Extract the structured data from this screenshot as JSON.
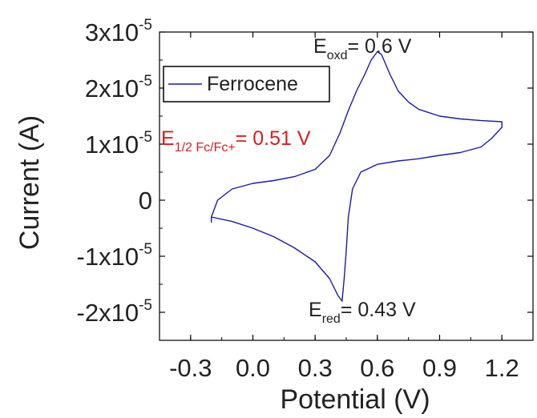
{
  "chart_data": {
    "type": "line",
    "xlabel": "Potential (V)",
    "ylabel": "Current (A)",
    "xlim": [
      -0.45,
      1.35
    ],
    "ylim": [
      -2.5e-05,
      3e-05
    ],
    "x_ticks": [
      {
        "value": -0.3,
        "label": "-0.3"
      },
      {
        "value": 0.0,
        "label": "0.0"
      },
      {
        "value": 0.3,
        "label": "0.3"
      },
      {
        "value": 0.6,
        "label": "0.6"
      },
      {
        "value": 0.9,
        "label": "0.9"
      },
      {
        "value": 1.2,
        "label": "1.2"
      }
    ],
    "y_ticks": [
      {
        "value": 3e-05,
        "mant": "3x10",
        "exp": "-5"
      },
      {
        "value": 2e-05,
        "mant": "2x10",
        "exp": "-5"
      },
      {
        "value": 1e-05,
        "mant": "1x10",
        "exp": "-5"
      },
      {
        "value": 0,
        "mant": "0",
        "exp": ""
      },
      {
        "value": -1e-05,
        "mant": "-1x10",
        "exp": "-5"
      },
      {
        "value": -2e-05,
        "mant": "-2x10",
        "exp": "-5"
      }
    ],
    "grid": false,
    "legend_position": "top-left",
    "series": [
      {
        "name": "Ferrocene",
        "color": "#1a1aa8",
        "points": [
          [
            -0.2,
            -4e-06
          ],
          [
            -0.2,
            -3e-06
          ],
          [
            -0.17,
            0.0
          ],
          [
            -0.1,
            2e-06
          ],
          [
            0.0,
            3e-06
          ],
          [
            0.1,
            3.5e-06
          ],
          [
            0.2,
            4.2e-06
          ],
          [
            0.3,
            5.5e-06
          ],
          [
            0.37,
            8e-06
          ],
          [
            0.42,
            1.2e-05
          ],
          [
            0.46,
            1.6e-05
          ],
          [
            0.5,
            1.95e-05
          ],
          [
            0.54,
            2.25e-05
          ],
          [
            0.57,
            2.5e-05
          ],
          [
            0.6,
            2.65e-05
          ],
          [
            0.62,
            2.6e-05
          ],
          [
            0.66,
            2.25e-05
          ],
          [
            0.7,
            1.95e-05
          ],
          [
            0.75,
            1.75e-05
          ],
          [
            0.8,
            1.62e-05
          ],
          [
            0.9,
            1.5e-05
          ],
          [
            1.0,
            1.45e-05
          ],
          [
            1.1,
            1.42e-05
          ],
          [
            1.2,
            1.4e-05
          ],
          [
            1.2,
            1.3e-05
          ],
          [
            1.15,
            1.1e-05
          ],
          [
            1.1,
            9.5e-06
          ],
          [
            1.0,
            8.5e-06
          ],
          [
            0.9,
            8e-06
          ],
          [
            0.8,
            7.4e-06
          ],
          [
            0.7,
            7e-06
          ],
          [
            0.6,
            6.4e-06
          ],
          [
            0.52,
            5e-06
          ],
          [
            0.48,
            2e-06
          ],
          [
            0.46,
            -3e-06
          ],
          [
            0.45,
            -9e-06
          ],
          [
            0.44,
            -1.4e-05
          ],
          [
            0.43,
            -1.8e-05
          ],
          [
            0.41,
            -1.7e-05
          ],
          [
            0.37,
            -1.4e-05
          ],
          [
            0.3,
            -1.1e-05
          ],
          [
            0.2,
            -8.5e-06
          ],
          [
            0.1,
            -6.5e-06
          ],
          [
            0.0,
            -5e-06
          ],
          [
            -0.1,
            -3.8e-06
          ],
          [
            -0.2,
            -3e-06
          ]
        ]
      }
    ],
    "annotations": [
      {
        "id": "oxd",
        "main": "E",
        "sub": "oxd",
        "rest": "= 0.6 V",
        "x": 0.6,
        "y": 2.65e-05,
        "color": "#222222"
      },
      {
        "id": "red",
        "main": "E",
        "sub": "red",
        "rest": "= 0.43 V",
        "x": 0.43,
        "y": -1.8e-05,
        "color": "#222222"
      },
      {
        "id": "half",
        "main": "E",
        "sub": "1/2 Fc/Fc+",
        "rest": "= 0.51 V",
        "x": 0.51,
        "y": 0.0,
        "color": "#d42020"
      }
    ]
  }
}
